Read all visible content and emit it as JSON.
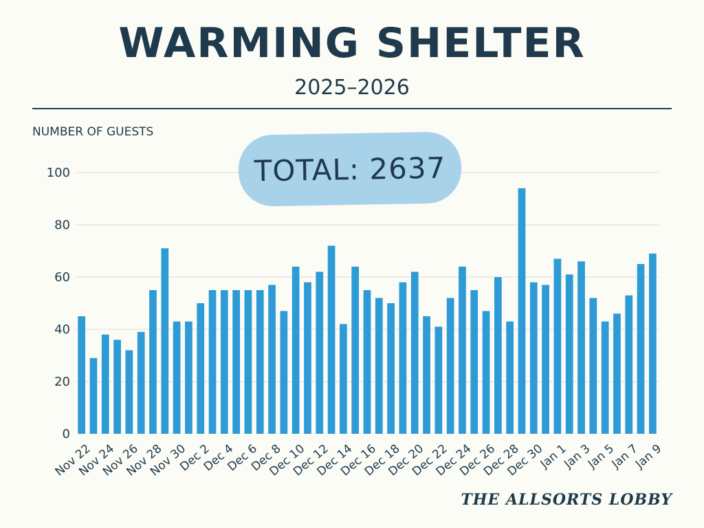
{
  "header": {
    "title": "WARMING SHELTER",
    "subtitle": "2025–2026"
  },
  "total_label": "TOTAL: 2637",
  "brand": "THE ALLSORTS LOBBY",
  "colors": {
    "bar": "#2e9ad6",
    "pill": "#a8d1ea",
    "text": "#1e3a4c",
    "grid": "#dcdcd4"
  },
  "chart_data": {
    "type": "bar",
    "ylabel": "NUMBER OF GUESTS",
    "ylim": [
      0,
      100
    ],
    "yticks": [
      0,
      20,
      40,
      60,
      80,
      100
    ],
    "grid": true,
    "categories": [
      "Nov 22",
      "Nov 23",
      "Nov 24",
      "Nov 25",
      "Nov 26",
      "Nov 27",
      "Nov 28",
      "Nov 29",
      "Nov 30",
      "Dec 1",
      "Dec 2",
      "Dec 3",
      "Dec 4",
      "Dec 5",
      "Dec 6",
      "Dec 7",
      "Dec 8",
      "Dec 9",
      "Dec 10",
      "Dec 11",
      "Dec 12",
      "Dec 13",
      "Dec 14",
      "Dec 15",
      "Dec 16",
      "Dec 17",
      "Dec 18",
      "Dec 19",
      "Dec 20",
      "Dec 21",
      "Dec 22",
      "Dec 23",
      "Dec 24",
      "Dec 25",
      "Dec 26",
      "Dec 27",
      "Dec 28",
      "Dec 29",
      "Dec 30",
      "Dec 31",
      "Jan 1",
      "Jan 2",
      "Jan 3",
      "Jan 4",
      "Jan 5",
      "Jan 6",
      "Jan 7",
      "Jan 8",
      "Jan 9"
    ],
    "tick_labels_shown": [
      "Nov 22",
      "Nov 24",
      "Nov 26",
      "Nov 28",
      "Nov 30",
      "Dec 2",
      "Dec 4",
      "Dec 6",
      "Dec 8",
      "Dec 10",
      "Dec 12",
      "Dec 14",
      "Dec 16",
      "Dec 18",
      "Dec 20",
      "Dec 22",
      "Dec 24",
      "Dec 26",
      "Dec 28",
      "Dec 30",
      "Jan 1",
      "Jan 3",
      "Jan 5",
      "Jan 7",
      "Jan 9"
    ],
    "values": [
      45,
      29,
      38,
      36,
      32,
      39,
      55,
      71,
      43,
      43,
      50,
      55,
      55,
      55,
      55,
      55,
      57,
      47,
      64,
      58,
      62,
      72,
      42,
      64,
      55,
      52,
      50,
      58,
      62,
      45,
      41,
      52,
      64,
      55,
      47,
      60,
      43,
      94,
      58,
      57,
      67,
      61,
      66,
      52,
      43,
      46,
      53,
      65,
      69
    ]
  }
}
